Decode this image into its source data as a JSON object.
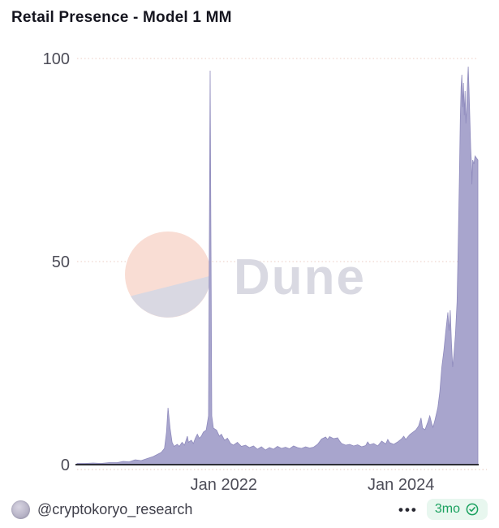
{
  "header": {
    "title": "Retail Presence - Model 1 MM"
  },
  "chart_data": {
    "type": "area",
    "title": "Retail Presence - Model 1 MM",
    "xlabel": "",
    "ylabel": "",
    "ylim": [
      0,
      100
    ],
    "y_tick_labels": [
      "100",
      "50",
      "0"
    ],
    "x_ticks": [
      {
        "label": "Jan 2022",
        "pos_pct": 36.6
      },
      {
        "label": "Jan 2024",
        "pos_pct": 80.8
      }
    ],
    "grid": "horizontal dotted lines at 0, 50, 100; legend off",
    "watermark": "Dune",
    "series": [
      {
        "name": "Retail Presence - Model 1 MM",
        "fill_color": "#a8a5cd",
        "stroke_color": "#8f8bbd",
        "points_pct_value": [
          [
            0,
            0.3
          ],
          [
            2,
            0.3
          ],
          [
            4,
            0.4
          ],
          [
            6,
            0.3
          ],
          [
            8,
            0.5
          ],
          [
            10,
            0.5
          ],
          [
            11.5,
            0.8
          ],
          [
            13,
            0.7
          ],
          [
            14.5,
            1.2
          ],
          [
            16,
            1
          ],
          [
            17.5,
            1.5
          ],
          [
            19,
            2
          ],
          [
            20,
            2.5
          ],
          [
            21,
            3
          ],
          [
            21.8,
            4
          ],
          [
            22.3,
            8
          ],
          [
            22.7,
            14
          ],
          [
            23.2,
            9
          ],
          [
            23.7,
            5.5
          ],
          [
            24.2,
            4.5
          ],
          [
            25,
            5
          ],
          [
            25.5,
            4.5
          ],
          [
            26.2,
            5.5
          ],
          [
            26.8,
            4.8
          ],
          [
            27.5,
            7
          ],
          [
            27.8,
            5.5
          ],
          [
            28.5,
            6
          ],
          [
            29,
            5.2
          ],
          [
            29.5,
            6.5
          ],
          [
            30,
            7.5
          ],
          [
            30.5,
            6.5
          ],
          [
            31,
            7
          ],
          [
            31.5,
            8
          ],
          [
            32.2,
            8.5
          ],
          [
            32.8,
            12
          ],
          [
            33.2,
            97
          ],
          [
            33.6,
            12
          ],
          [
            34,
            9
          ],
          [
            34.8,
            8.5
          ],
          [
            35.5,
            7
          ],
          [
            36,
            7.5
          ],
          [
            36.8,
            6
          ],
          [
            37.5,
            6.5
          ],
          [
            38.3,
            5.2
          ],
          [
            39,
            4.8
          ],
          [
            40,
            5.5
          ],
          [
            41,
            4.5
          ],
          [
            42,
            4.8
          ],
          [
            43,
            4.2
          ],
          [
            44,
            4.6
          ],
          [
            45,
            3.8
          ],
          [
            46,
            4.4
          ],
          [
            47,
            3.6
          ],
          [
            48,
            4.2
          ],
          [
            49,
            3.8
          ],
          [
            50,
            4.5
          ],
          [
            51,
            4
          ],
          [
            52,
            4.3
          ],
          [
            53,
            3.9
          ],
          [
            54,
            4.6
          ],
          [
            55,
            4.2
          ],
          [
            56,
            4
          ],
          [
            57,
            4.4
          ],
          [
            58,
            4.1
          ],
          [
            59,
            4.3
          ],
          [
            60,
            5
          ],
          [
            61,
            6.3
          ],
          [
            62,
            6.8
          ],
          [
            62.5,
            6.2
          ],
          [
            63,
            6.9
          ],
          [
            64,
            6.4
          ],
          [
            65,
            6.6
          ],
          [
            65.5,
            5.8
          ],
          [
            66,
            5.2
          ],
          [
            67,
            4.8
          ],
          [
            68,
            5
          ],
          [
            69,
            4.6
          ],
          [
            70,
            4.9
          ],
          [
            71,
            4.4
          ],
          [
            72,
            4.7
          ],
          [
            72.5,
            5.6
          ],
          [
            73,
            4.9
          ],
          [
            74,
            5.2
          ],
          [
            75,
            4.6
          ],
          [
            76,
            5.8
          ],
          [
            77,
            5.1
          ],
          [
            77.5,
            6.2
          ],
          [
            78,
            5.4
          ],
          [
            79,
            5
          ],
          [
            80,
            5.6
          ],
          [
            81,
            6.4
          ],
          [
            81.5,
            7
          ],
          [
            82,
            6.2
          ],
          [
            83,
            7.4
          ],
          [
            84.5,
            8.5
          ],
          [
            85.2,
            9.5
          ],
          [
            85.8,
            11.5
          ],
          [
            86.2,
            9
          ],
          [
            86.8,
            8.6
          ],
          [
            87.5,
            10.5
          ],
          [
            88,
            12
          ],
          [
            88.5,
            10
          ],
          [
            88.8,
            9.2
          ],
          [
            89.3,
            11
          ],
          [
            90,
            14
          ],
          [
            90.5,
            18
          ],
          [
            91,
            24
          ],
          [
            91.5,
            28
          ],
          [
            92,
            33
          ],
          [
            92.5,
            37.5
          ],
          [
            92.8,
            33
          ],
          [
            93.1,
            38
          ],
          [
            93.4,
            30
          ],
          [
            93.7,
            24
          ],
          [
            94,
            27
          ],
          [
            94.4,
            32
          ],
          [
            94.8,
            40
          ],
          [
            95.1,
            55
          ],
          [
            95.4,
            72
          ],
          [
            95.6,
            85
          ],
          [
            95.8,
            93
          ],
          [
            96,
            96
          ],
          [
            96.2,
            88
          ],
          [
            96.4,
            94
          ],
          [
            96.6,
            86
          ],
          [
            96.8,
            92
          ],
          [
            97,
            84
          ],
          [
            97.2,
            88
          ],
          [
            97.4,
            94
          ],
          [
            97.6,
            98
          ],
          [
            97.8,
            92
          ],
          [
            98,
            85
          ],
          [
            98.2,
            78
          ],
          [
            98.4,
            74
          ],
          [
            98.5,
            69
          ],
          [
            98.7,
            75
          ],
          [
            99,
            74
          ],
          [
            99.3,
            76
          ],
          [
            100,
            75
          ]
        ]
      }
    ]
  },
  "watermark": {
    "wordmark": "Dune",
    "logo_pink": "#f9ddd4",
    "logo_gray": "#d9d8e2",
    "text_color": "#d9d9e2"
  },
  "footer": {
    "handle": "@cryptokoryo_research",
    "menu_label": "•••",
    "age_badge": {
      "label": "3mo",
      "icon": "verified-check",
      "text_color": "#1aa15f",
      "bg_color": "#e8f7ef"
    }
  },
  "colors": {
    "title": "#15151f",
    "tick_text": "#4d4d58",
    "gridline": "#f2ded7",
    "axis_line": "#2e2e36",
    "area_fill": "#a8a5cd",
    "green_accent": "#1aa15f",
    "background": "#ffffff"
  }
}
